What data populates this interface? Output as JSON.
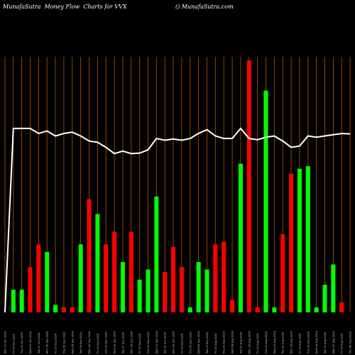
{
  "header": {
    "left": "MunafaSutra  Money Flow  Charts for VVX",
    "right": "() MunafaSutra.com"
  },
  "chart_data": {
    "type": "bar",
    "ylim": [
      0,
      100
    ],
    "grid": true,
    "colors": {
      "up": "#00ff00",
      "down": "#ff0000",
      "grid": "#b35900",
      "line": "#ffffff",
      "background": "#000000"
    },
    "categories": [
      "Mon 07 Oct 2024",
      "Fri 04 Oct 2024",
      "Thu 03 Oct 2024",
      "Wed 02 Oct 2024",
      "Tue 01 Oct 2024",
      "Mon 30 Sep 2024",
      "Fri 27 Sep 2024",
      "Thu 26 Sep 2024",
      "Wed 25 Sep 2024",
      "Tue 24 Sep 2024",
      "Mon 23 Sep 2024",
      "Fri 20 Sep 2024",
      "Thu 19 Sep 2024",
      "Wed 18 Sep 2024",
      "Tue 17 Sep 2024",
      "Mon 16 Sep 2024",
      "Fri 13 Sep 2024",
      "Thu 12 Sep 2024",
      "Wed 11 Sep 2024",
      "Tue 10 Sep 2024",
      "Mon 09 Sep 2024",
      "Fri 06 Sep 2024",
      "Thu 05 Sep 2024",
      "Wed 04 Sep 2024",
      "Tue 03 Sep 2024",
      "Fri 30 Aug 2024",
      "Thu 29 Aug 2024",
      "Wed 28 Aug 2024",
      "Tue 27 Aug 2024",
      "Mon 26 Aug 2024",
      "Fri 23 Aug 2024",
      "Thu 22 Aug 2024",
      "Wed 21 Aug 2024",
      "Tue 20 Aug 2024",
      "Mon 19 Aug 2024",
      "Fri 16 Aug 2024",
      "Thu 15 Aug 2024",
      "Wed 14 Aug 2024",
      "Tue 13 Aug 2024",
      "Mon 12 Aug 2024",
      "Fri 09 Aug 2024",
      "Thu 08 Aug 2024"
    ],
    "series": [
      {
        "values": [
          0,
          9,
          9,
          18,
          27,
          24,
          3,
          2,
          2,
          27,
          45,
          39,
          27,
          32,
          20,
          32,
          13,
          17,
          46,
          16,
          26,
          18,
          2,
          20,
          17,
          27,
          28,
          5,
          59,
          100,
          2,
          88,
          2,
          31,
          55,
          57,
          58,
          2,
          11,
          19,
          4,
          0
        ],
        "directions": [
          "up",
          "up",
          "up",
          "down",
          "down",
          "up",
          "up",
          "down",
          "down",
          "up",
          "down",
          "up",
          "down",
          "down",
          "up",
          "down",
          "up",
          "up",
          "up",
          "down",
          "down",
          "down",
          "up",
          "up",
          "up",
          "down",
          "down",
          "down",
          "up",
          "down",
          "down",
          "up",
          "up",
          "down",
          "down",
          "up",
          "up",
          "up",
          "up",
          "up",
          "down",
          "down"
        ]
      },
      {
        "type": "line",
        "values": [
          0,
          73,
          73,
          73,
          71,
          72,
          70,
          71,
          71.5,
          70,
          68,
          67.5,
          65.5,
          63,
          64,
          63,
          63.2,
          64.5,
          69,
          68.3,
          68.8,
          68.3,
          69,
          71,
          72.5,
          70,
          69,
          69,
          73,
          69,
          68.5,
          69.5,
          70,
          68,
          65.5,
          66,
          70,
          69.5,
          70,
          70.5,
          71,
          70.8
        ]
      }
    ]
  }
}
